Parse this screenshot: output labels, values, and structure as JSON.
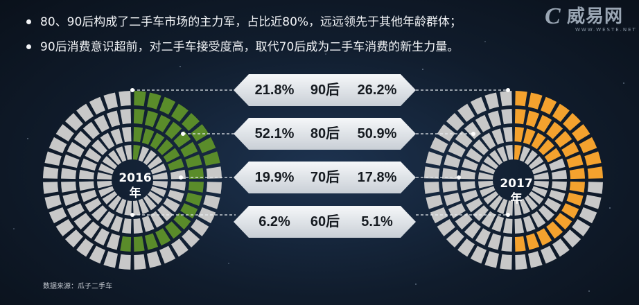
{
  "bullets": [
    "80、90后构成了二手车市场的主力军，占比近80%，远远领先于其他年龄群体；",
    "90后消费意识超前，对二手车接受度高，取代70后成为二手车消费的新生力量。"
  ],
  "logo": {
    "name": "威易网",
    "url": "WWW.WESTE.NET"
  },
  "source": "数据来源：瓜子二手车",
  "colors": {
    "y2016": "#5a8c2a",
    "y2017": "#f4a22e",
    "segment": "#c8c8c8"
  },
  "chart_data": {
    "type": "radial-bar",
    "categories": [
      "90后",
      "80后",
      "70后",
      "60后"
    ],
    "series": [
      {
        "name": "2016年",
        "values": [
          21.8,
          52.1,
          19.9,
          6.2
        ]
      },
      {
        "name": "2017年",
        "values": [
          26.2,
          50.9,
          17.8,
          5.1
        ]
      }
    ],
    "labels": {
      "left": [
        "21.8%",
        "52.1%",
        "19.9%",
        "6.2%"
      ],
      "right": [
        "26.2%",
        "50.9%",
        "17.8%",
        "5.1%"
      ]
    },
    "units": "%"
  },
  "years": {
    "y2016": {
      "line1": "2016",
      "line2": "年"
    },
    "y2017": {
      "line1": "2017",
      "line2": "年"
    }
  }
}
